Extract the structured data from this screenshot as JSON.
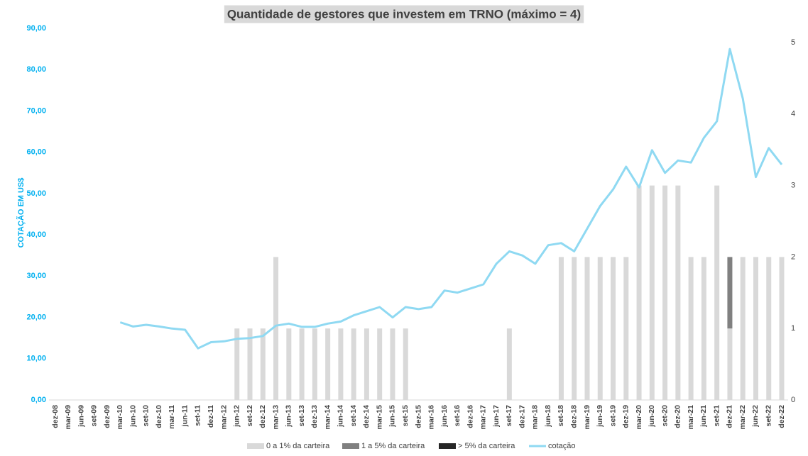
{
  "chart_data": {
    "type": "bar",
    "title": "Quantidade de gestores que investem em TRNO (máximo = 4)",
    "y_label": "COTAÇÃO EM US$",
    "categories": [
      "dez-08",
      "mar-09",
      "jun-09",
      "set-09",
      "dez-09",
      "mar-10",
      "jun-10",
      "set-10",
      "dez-10",
      "mar-11",
      "jun-11",
      "set-11",
      "dez-11",
      "mar-12",
      "jun-12",
      "set-12",
      "dez-12",
      "mar-13",
      "jun-13",
      "set-13",
      "dez-13",
      "mar-14",
      "jun-14",
      "set-14",
      "dez-14",
      "mar-15",
      "jun-15",
      "set-15",
      "dez-15",
      "mar-16",
      "jun-16",
      "set-16",
      "dez-16",
      "mar-17",
      "jun-17",
      "set-17",
      "dez-17",
      "mar-18",
      "jun-18",
      "set-18",
      "dez-18",
      "mar-19",
      "jun-19",
      "set-19",
      "dez-19",
      "mar-20",
      "jun-20",
      "set-20",
      "dez-20",
      "mar-21",
      "jun-21",
      "set-21",
      "dez-21",
      "mar-22",
      "jun-22",
      "set-22",
      "dez-22"
    ],
    "series": [
      {
        "name": "0 a 1% da carteira",
        "color": "#d9d9d9",
        "type": "bar",
        "axis": "y2",
        "values": [
          null,
          null,
          null,
          null,
          null,
          null,
          null,
          null,
          null,
          null,
          null,
          null,
          null,
          null,
          1,
          1,
          1,
          2,
          1,
          1,
          1,
          1,
          1,
          1,
          1,
          1,
          1,
          1,
          null,
          null,
          null,
          null,
          null,
          null,
          null,
          1,
          null,
          null,
          null,
          2,
          2,
          2,
          2,
          2,
          2,
          3,
          3,
          3,
          3,
          2,
          2,
          3,
          1,
          2,
          2,
          2,
          2
        ]
      },
      {
        "name": "1 a 5% da carteira",
        "color": "#808080",
        "type": "bar",
        "axis": "y2",
        "values": [
          null,
          null,
          null,
          null,
          null,
          null,
          null,
          null,
          null,
          null,
          null,
          null,
          null,
          null,
          null,
          null,
          null,
          null,
          null,
          null,
          null,
          null,
          null,
          null,
          null,
          null,
          null,
          null,
          null,
          null,
          null,
          null,
          null,
          null,
          null,
          null,
          null,
          null,
          null,
          null,
          null,
          null,
          null,
          null,
          null,
          null,
          null,
          null,
          null,
          null,
          null,
          null,
          1,
          null,
          null,
          null,
          null
        ]
      },
      {
        "name": "> 5% da carteira",
        "color": "#262626",
        "type": "bar",
        "axis": "y2",
        "values": [
          null,
          null,
          null,
          null,
          null,
          null,
          null,
          null,
          null,
          null,
          null,
          null,
          null,
          null,
          null,
          null,
          null,
          null,
          null,
          null,
          null,
          null,
          null,
          null,
          null,
          null,
          null,
          null,
          null,
          null,
          null,
          null,
          null,
          null,
          null,
          null,
          null,
          null,
          null,
          null,
          null,
          null,
          null,
          null,
          null,
          null,
          null,
          null,
          null,
          null,
          null,
          null,
          null,
          null,
          null,
          null,
          null
        ]
      },
      {
        "name": "cotação",
        "color": "#8fd9f2",
        "type": "line",
        "axis": "y",
        "values": [
          null,
          null,
          null,
          null,
          null,
          18.8,
          17.8,
          18.2,
          17.8,
          17.3,
          17.0,
          12.5,
          14.0,
          14.2,
          14.8,
          15.0,
          15.5,
          18.0,
          18.5,
          17.7,
          17.7,
          18.5,
          19.0,
          20.5,
          21.5,
          22.5,
          20.0,
          22.5,
          22.0,
          22.5,
          26.5,
          26.0,
          27.0,
          28.0,
          33.0,
          36.0,
          35.0,
          33.0,
          37.5,
          38.0,
          36.0,
          41.5,
          47.0,
          51.0,
          56.5,
          51.5,
          60.5,
          55.0,
          58.0,
          57.5,
          63.5,
          67.5,
          85.0,
          73.0,
          54.0,
          61.0,
          57.0
        ]
      }
    ],
    "ylim": [
      0,
      90
    ],
    "yticks": [
      {
        "value": 0,
        "label": "0,00"
      },
      {
        "value": 10,
        "label": "10,00"
      },
      {
        "value": 20,
        "label": "20,00"
      },
      {
        "value": 30,
        "label": "30,00"
      },
      {
        "value": 40,
        "label": "40,00"
      },
      {
        "value": 50,
        "label": "50,00"
      },
      {
        "value": 60,
        "label": "60,00"
      },
      {
        "value": 70,
        "label": "70,00"
      },
      {
        "value": 80,
        "label": "80,00"
      },
      {
        "value": 90,
        "label": "90,00"
      }
    ],
    "y2lim": [
      0,
      5
    ],
    "y2ticks": [
      0,
      1,
      2,
      3,
      4,
      5
    ],
    "grid": false,
    "legend": "bottom"
  }
}
